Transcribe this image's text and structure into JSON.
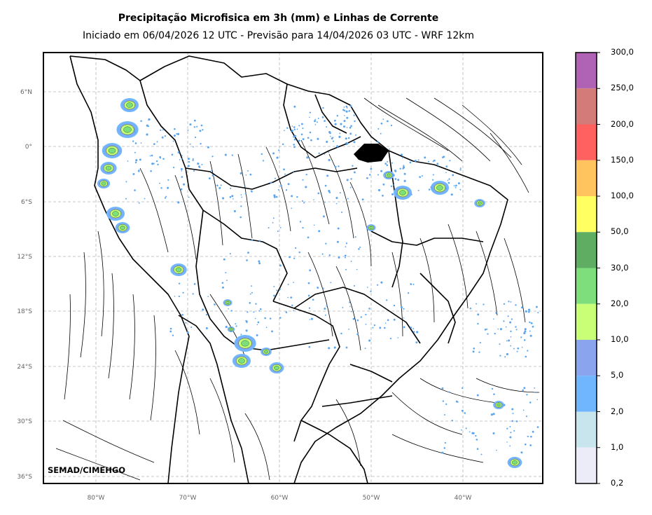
{
  "title": "Precipitação Microfisica em 3h (mm) e Linhas de Corrente",
  "subtitle": "Iniciado em 06/04/2026 12 UTC - Previsão para 14/04/2026 03 UTC - WRF 12km",
  "credit": "SEMAD/CIMEHGO",
  "lat_labels": [
    "6°N",
    "0°",
    "6°S",
    "12°S",
    "18°S",
    "24°S",
    "30°S",
    "36°S"
  ],
  "lon_labels": [
    "80°W",
    "70°W",
    "60°W",
    "50°W",
    "40°W"
  ],
  "colorbar": {
    "labels": [
      "300,0",
      "250,0",
      "200,0",
      "150,0",
      "100,0",
      "50,0",
      "30,0",
      "20,0",
      "10,0",
      "5,0",
      "2,0",
      "1,0",
      "0,2"
    ],
    "colors": [
      "#b062b5",
      "#d27b78",
      "#ff6161",
      "#ffc45e",
      "#ffff62",
      "#5fad62",
      "#7ede7c",
      "#c8ff76",
      "#8ba4ee",
      "#70b6ff",
      "#c8e5ee",
      "#ececf9"
    ]
  }
}
